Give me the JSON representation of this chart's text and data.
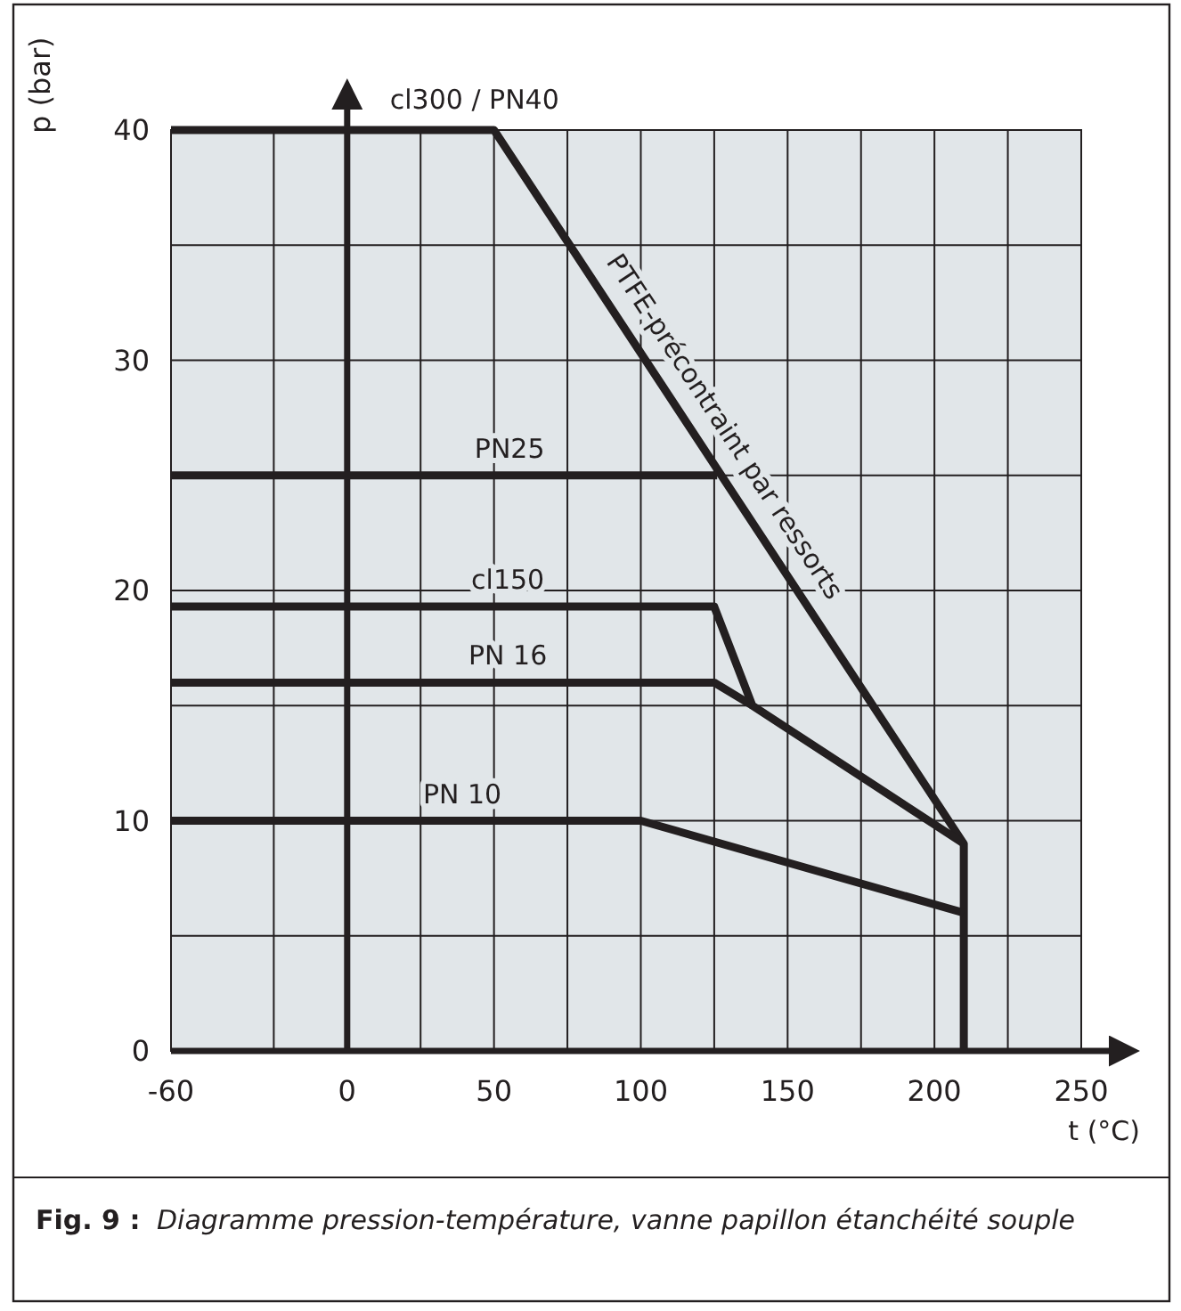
{
  "chart_data": {
    "type": "line",
    "xlabel": "t (°C)",
    "ylabel": "p (bar)",
    "xlim": [
      -60,
      250
    ],
    "ylim": [
      0,
      40
    ],
    "xticks": [
      -60,
      {
        "value": -25,
        "label": null
      },
      0,
      {
        "value": 25,
        "label": null
      },
      50,
      {
        "value": 75,
        "label": null
      },
      100,
      {
        "value": 125,
        "label": null
      },
      150,
      {
        "value": 175,
        "label": null
      },
      200,
      {
        "value": 225,
        "label": null
      },
      250
    ],
    "yticks": [
      0,
      {
        "value": 5,
        "label": null
      },
      10,
      {
        "value": 15,
        "label": null
      },
      20,
      {
        "value": 25,
        "label": null
      },
      30,
      {
        "value": 35,
        "label": null
      },
      40
    ],
    "grid": true,
    "marker": "none",
    "line_style": "solid",
    "legend": false,
    "series": [
      {
        "name": "cl300 / PN40",
        "color": "#231f20",
        "x": [
          -60,
          50,
          210,
          210
        ],
        "values": [
          40,
          40,
          9,
          0
        ]
      },
      {
        "name": "PN25",
        "color": "#231f20",
        "x": [
          -60,
          126
        ],
        "values": [
          25,
          25
        ]
      },
      {
        "name": "cl150",
        "color": "#231f20",
        "x": [
          -60,
          125,
          138,
          210
        ],
        "values": [
          19.3,
          19.3,
          15,
          9
        ]
      },
      {
        "name": "PN 16",
        "color": "#231f20",
        "x": [
          -60,
          125,
          138
        ],
        "values": [
          16,
          16,
          15
        ]
      },
      {
        "name": "PN 10",
        "color": "#231f20",
        "x": [
          -60,
          100,
          210
        ],
        "values": [
          10,
          10,
          6
        ]
      }
    ],
    "annotations": [
      {
        "text": "PTFE-précontraint par ressorts",
        "x": 120,
        "y": 26.4
      },
      "Fig. 9 :",
      "Diagramme pression-température, vanne papillon étanchéité souple"
    ]
  }
}
